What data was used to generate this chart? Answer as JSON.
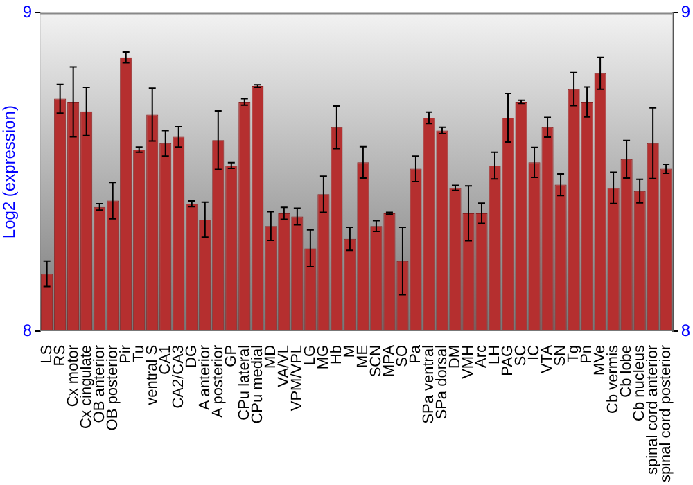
{
  "chart_data": {
    "type": "bar",
    "ylabel": "Log2 (expression)",
    "categories": [
      "LS",
      "RS",
      "Cx motor",
      "Cx cingulate",
      "OB anterior",
      "OB posterior",
      "Pir",
      "Tu",
      "ventral S",
      "CA1",
      "CA2/CA3",
      "DG",
      "A anterior",
      "A posterior",
      "GP",
      "CPu lateral",
      "CPu medial",
      "MD",
      "VA/VL",
      "VPM/VPL",
      "LG",
      "MG",
      "Hb",
      "M",
      "ME",
      "SCN",
      "MPA",
      "SO",
      "Pa",
      "SPa ventral",
      "SPa dorsal",
      "DM",
      "VMH",
      "Arc",
      "LH",
      "PAG",
      "SC",
      "IC",
      "VTA",
      "SN",
      "Tg",
      "Pn",
      "MVe",
      "Cb vermis",
      "Cb lobe",
      "Cb nucleus",
      "spinal cord anterior",
      "spinal cord posterior"
    ],
    "values": [
      8.18,
      8.73,
      8.72,
      8.69,
      8.39,
      8.41,
      8.86,
      8.57,
      8.68,
      8.59,
      8.61,
      8.4,
      8.35,
      8.6,
      8.52,
      8.72,
      8.77,
      8.33,
      8.37,
      8.36,
      8.26,
      8.43,
      8.64,
      8.29,
      8.53,
      8.33,
      8.37,
      8.22,
      8.51,
      8.67,
      8.63,
      8.45,
      8.37,
      8.37,
      8.52,
      8.67,
      8.72,
      8.53,
      8.64,
      8.46,
      8.76,
      8.72,
      8.81,
      8.45,
      8.54,
      8.44,
      8.59,
      8.51
    ],
    "errors": [
      0.04,
      0.045,
      0.11,
      0.076,
      0.01,
      0.057,
      0.017,
      0.008,
      0.083,
      0.04,
      0.032,
      0.009,
      0.055,
      0.092,
      0.009,
      0.01,
      0.004,
      0.045,
      0.019,
      0.026,
      0.058,
      0.057,
      0.067,
      0.036,
      0.049,
      0.017,
      0.003,
      0.106,
      0.04,
      0.018,
      0.01,
      0.008,
      0.086,
      0.032,
      0.042,
      0.076,
      0.005,
      0.047,
      0.031,
      0.034,
      0.052,
      0.047,
      0.05,
      0.049,
      0.059,
      0.037,
      0.111,
      0.014
    ],
    "color": "#b52f2f",
    "ylim": [
      8,
      9
    ],
    "yticks": [
      8,
      9
    ],
    "y2lim": [
      8,
      9
    ],
    "y2ticks": [
      8,
      9
    ],
    "grid": false,
    "legend": false
  }
}
